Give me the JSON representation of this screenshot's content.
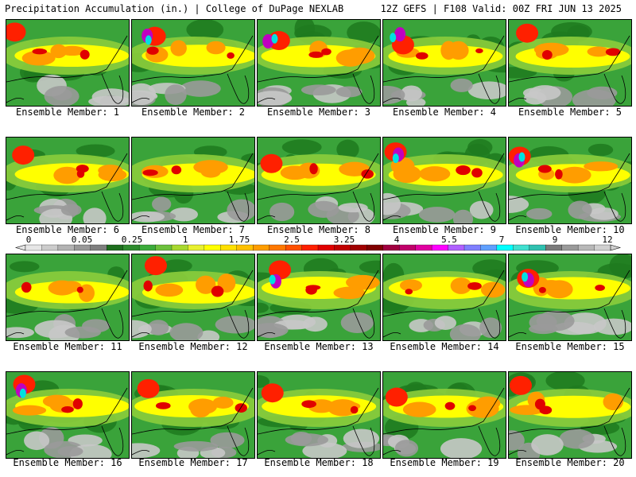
{
  "header": {
    "title": "Precipitation Accumulation (in.) | College of DuPage NEXLAB",
    "run_info": "12Z GEFS | F108 Valid: 00Z FRI JUN 13 2025"
  },
  "member_label_prefix": "Ensemble Member:",
  "members": [
    {
      "number": "1",
      "label": "Ensemble Member: 1"
    },
    {
      "number": "2",
      "label": "Ensemble Member: 2"
    },
    {
      "number": "3",
      "label": "Ensemble Member: 3"
    },
    {
      "number": "4",
      "label": "Ensemble Member: 4"
    },
    {
      "number": "5",
      "label": "Ensemble Member: 5"
    },
    {
      "number": "6",
      "label": "Ensemble Member: 6"
    },
    {
      "number": "7",
      "label": "Ensemble Member: 7"
    },
    {
      "number": "8",
      "label": "Ensemble Member: 8"
    },
    {
      "number": "9",
      "label": "Ensemble Member: 9"
    },
    {
      "number": "10",
      "label": "Ensemble Member: 10"
    },
    {
      "number": "11",
      "label": "Ensemble Member: 11"
    },
    {
      "number": "12",
      "label": "Ensemble Member: 12"
    },
    {
      "number": "13",
      "label": "Ensemble Member: 13"
    },
    {
      "number": "14",
      "label": "Ensemble Member: 14"
    },
    {
      "number": "15",
      "label": "Ensemble Member: 15"
    },
    {
      "number": "16",
      "label": "Ensemble Member: 16"
    },
    {
      "number": "17",
      "label": "Ensemble Member: 17"
    },
    {
      "number": "18",
      "label": "Ensemble Member: 18"
    },
    {
      "number": "19",
      "label": "Ensemble Member: 19"
    },
    {
      "number": "20",
      "label": "Ensemble Member: 20"
    }
  ],
  "colorbar": {
    "tick_labels": [
      "0",
      "0.05",
      "0.25",
      "1",
      "1.75",
      "2.5",
      "3.25",
      "4",
      "5.5",
      "7",
      "9",
      "12"
    ],
    "colors": [
      "#e6e6e6",
      "#cccccc",
      "#b3b3b3",
      "#999999",
      "#7f7f7f",
      "#1e6e1e",
      "#2e8b2e",
      "#3cab3c",
      "#6cc03c",
      "#a8d830",
      "#e8f030",
      "#ffff00",
      "#ffe000",
      "#ffc000",
      "#ff9d00",
      "#ff7800",
      "#ff5000",
      "#ff2000",
      "#e00000",
      "#c00000",
      "#a00000",
      "#800000",
      "#a00040",
      "#c0006a",
      "#e000a0",
      "#ff00ff",
      "#b060ff",
      "#7f7fff",
      "#60a0ff",
      "#00ffff",
      "#40e0d0",
      "#30c0b0",
      "#7a7a7a",
      "#9a9a9a",
      "#b8b8b8",
      "#d0d0d0"
    ]
  }
}
